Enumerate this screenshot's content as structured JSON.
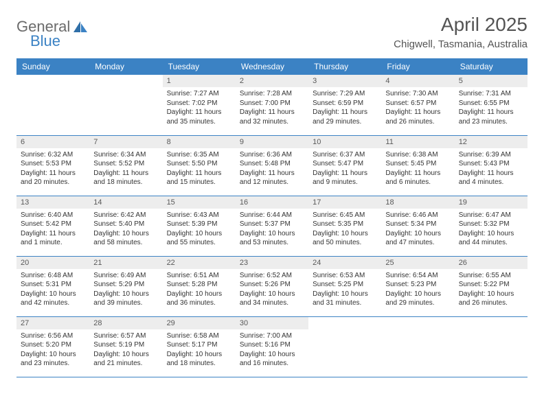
{
  "brand": {
    "part1": "General",
    "part2": "Blue"
  },
  "title": "April 2025",
  "location": "Chigwell, Tasmania, Australia",
  "colors": {
    "header_bg": "#3b82c4",
    "header_fg": "#ffffff",
    "daynum_bg": "#ededed",
    "daynum_fg": "#595959",
    "text": "#333333",
    "rule": "#3b82c4",
    "logo_gray": "#6b6b6b",
    "logo_blue": "#3b82c4"
  },
  "weekdays": [
    "Sunday",
    "Monday",
    "Tuesday",
    "Wednesday",
    "Thursday",
    "Friday",
    "Saturday"
  ],
  "weeks": [
    [
      null,
      null,
      {
        "n": "1",
        "sr": "Sunrise: 7:27 AM",
        "ss": "Sunset: 7:02 PM",
        "d1": "Daylight: 11 hours",
        "d2": "and 35 minutes."
      },
      {
        "n": "2",
        "sr": "Sunrise: 7:28 AM",
        "ss": "Sunset: 7:00 PM",
        "d1": "Daylight: 11 hours",
        "d2": "and 32 minutes."
      },
      {
        "n": "3",
        "sr": "Sunrise: 7:29 AM",
        "ss": "Sunset: 6:59 PM",
        "d1": "Daylight: 11 hours",
        "d2": "and 29 minutes."
      },
      {
        "n": "4",
        "sr": "Sunrise: 7:30 AM",
        "ss": "Sunset: 6:57 PM",
        "d1": "Daylight: 11 hours",
        "d2": "and 26 minutes."
      },
      {
        "n": "5",
        "sr": "Sunrise: 7:31 AM",
        "ss": "Sunset: 6:55 PM",
        "d1": "Daylight: 11 hours",
        "d2": "and 23 minutes."
      }
    ],
    [
      {
        "n": "6",
        "sr": "Sunrise: 6:32 AM",
        "ss": "Sunset: 5:53 PM",
        "d1": "Daylight: 11 hours",
        "d2": "and 20 minutes."
      },
      {
        "n": "7",
        "sr": "Sunrise: 6:34 AM",
        "ss": "Sunset: 5:52 PM",
        "d1": "Daylight: 11 hours",
        "d2": "and 18 minutes."
      },
      {
        "n": "8",
        "sr": "Sunrise: 6:35 AM",
        "ss": "Sunset: 5:50 PM",
        "d1": "Daylight: 11 hours",
        "d2": "and 15 minutes."
      },
      {
        "n": "9",
        "sr": "Sunrise: 6:36 AM",
        "ss": "Sunset: 5:48 PM",
        "d1": "Daylight: 11 hours",
        "d2": "and 12 minutes."
      },
      {
        "n": "10",
        "sr": "Sunrise: 6:37 AM",
        "ss": "Sunset: 5:47 PM",
        "d1": "Daylight: 11 hours",
        "d2": "and 9 minutes."
      },
      {
        "n": "11",
        "sr": "Sunrise: 6:38 AM",
        "ss": "Sunset: 5:45 PM",
        "d1": "Daylight: 11 hours",
        "d2": "and 6 minutes."
      },
      {
        "n": "12",
        "sr": "Sunrise: 6:39 AM",
        "ss": "Sunset: 5:43 PM",
        "d1": "Daylight: 11 hours",
        "d2": "and 4 minutes."
      }
    ],
    [
      {
        "n": "13",
        "sr": "Sunrise: 6:40 AM",
        "ss": "Sunset: 5:42 PM",
        "d1": "Daylight: 11 hours",
        "d2": "and 1 minute."
      },
      {
        "n": "14",
        "sr": "Sunrise: 6:42 AM",
        "ss": "Sunset: 5:40 PM",
        "d1": "Daylight: 10 hours",
        "d2": "and 58 minutes."
      },
      {
        "n": "15",
        "sr": "Sunrise: 6:43 AM",
        "ss": "Sunset: 5:39 PM",
        "d1": "Daylight: 10 hours",
        "d2": "and 55 minutes."
      },
      {
        "n": "16",
        "sr": "Sunrise: 6:44 AM",
        "ss": "Sunset: 5:37 PM",
        "d1": "Daylight: 10 hours",
        "d2": "and 53 minutes."
      },
      {
        "n": "17",
        "sr": "Sunrise: 6:45 AM",
        "ss": "Sunset: 5:35 PM",
        "d1": "Daylight: 10 hours",
        "d2": "and 50 minutes."
      },
      {
        "n": "18",
        "sr": "Sunrise: 6:46 AM",
        "ss": "Sunset: 5:34 PM",
        "d1": "Daylight: 10 hours",
        "d2": "and 47 minutes."
      },
      {
        "n": "19",
        "sr": "Sunrise: 6:47 AM",
        "ss": "Sunset: 5:32 PM",
        "d1": "Daylight: 10 hours",
        "d2": "and 44 minutes."
      }
    ],
    [
      {
        "n": "20",
        "sr": "Sunrise: 6:48 AM",
        "ss": "Sunset: 5:31 PM",
        "d1": "Daylight: 10 hours",
        "d2": "and 42 minutes."
      },
      {
        "n": "21",
        "sr": "Sunrise: 6:49 AM",
        "ss": "Sunset: 5:29 PM",
        "d1": "Daylight: 10 hours",
        "d2": "and 39 minutes."
      },
      {
        "n": "22",
        "sr": "Sunrise: 6:51 AM",
        "ss": "Sunset: 5:28 PM",
        "d1": "Daylight: 10 hours",
        "d2": "and 36 minutes."
      },
      {
        "n": "23",
        "sr": "Sunrise: 6:52 AM",
        "ss": "Sunset: 5:26 PM",
        "d1": "Daylight: 10 hours",
        "d2": "and 34 minutes."
      },
      {
        "n": "24",
        "sr": "Sunrise: 6:53 AM",
        "ss": "Sunset: 5:25 PM",
        "d1": "Daylight: 10 hours",
        "d2": "and 31 minutes."
      },
      {
        "n": "25",
        "sr": "Sunrise: 6:54 AM",
        "ss": "Sunset: 5:23 PM",
        "d1": "Daylight: 10 hours",
        "d2": "and 29 minutes."
      },
      {
        "n": "26",
        "sr": "Sunrise: 6:55 AM",
        "ss": "Sunset: 5:22 PM",
        "d1": "Daylight: 10 hours",
        "d2": "and 26 minutes."
      }
    ],
    [
      {
        "n": "27",
        "sr": "Sunrise: 6:56 AM",
        "ss": "Sunset: 5:20 PM",
        "d1": "Daylight: 10 hours",
        "d2": "and 23 minutes."
      },
      {
        "n": "28",
        "sr": "Sunrise: 6:57 AM",
        "ss": "Sunset: 5:19 PM",
        "d1": "Daylight: 10 hours",
        "d2": "and 21 minutes."
      },
      {
        "n": "29",
        "sr": "Sunrise: 6:58 AM",
        "ss": "Sunset: 5:17 PM",
        "d1": "Daylight: 10 hours",
        "d2": "and 18 minutes."
      },
      {
        "n": "30",
        "sr": "Sunrise: 7:00 AM",
        "ss": "Sunset: 5:16 PM",
        "d1": "Daylight: 10 hours",
        "d2": "and 16 minutes."
      },
      null,
      null,
      null
    ]
  ]
}
